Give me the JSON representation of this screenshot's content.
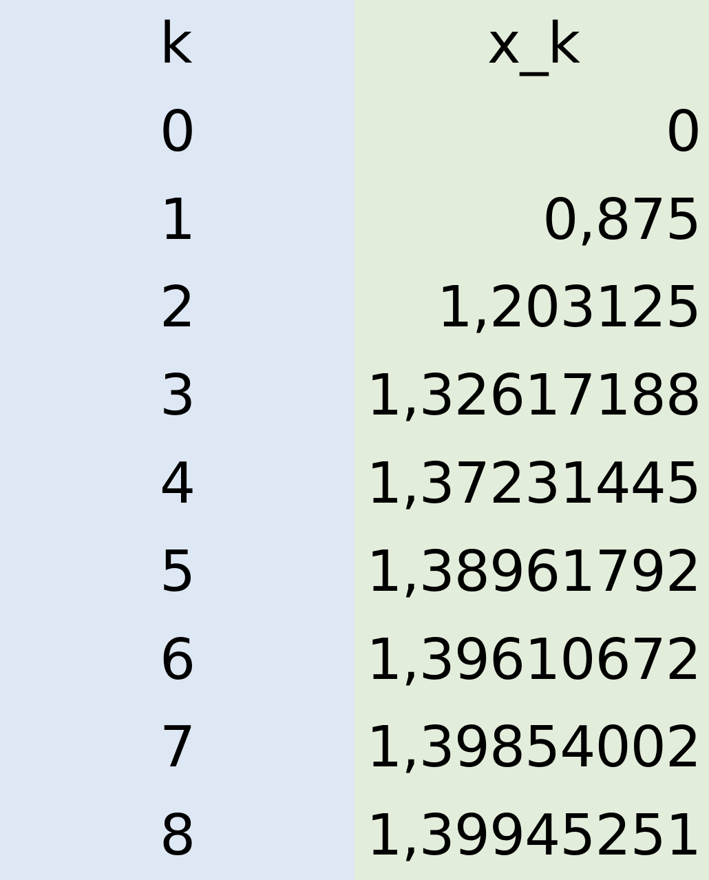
{
  "table": {
    "headers": [
      "k",
      "x_k"
    ],
    "rows": [
      [
        "0",
        "0"
      ],
      [
        "1",
        "0,875"
      ],
      [
        "2",
        "1,203125"
      ],
      [
        "3",
        "1,32617188"
      ],
      [
        "4",
        "1,37231445"
      ],
      [
        "5",
        "1,38961792"
      ],
      [
        "6",
        "1,39610672"
      ],
      [
        "7",
        "1,39854002"
      ],
      [
        "8",
        "1,39945251"
      ]
    ]
  },
  "colors": {
    "k_column_bg": "#dee8f4",
    "x_column_bg": "#e3eddb",
    "text": "#000000"
  }
}
